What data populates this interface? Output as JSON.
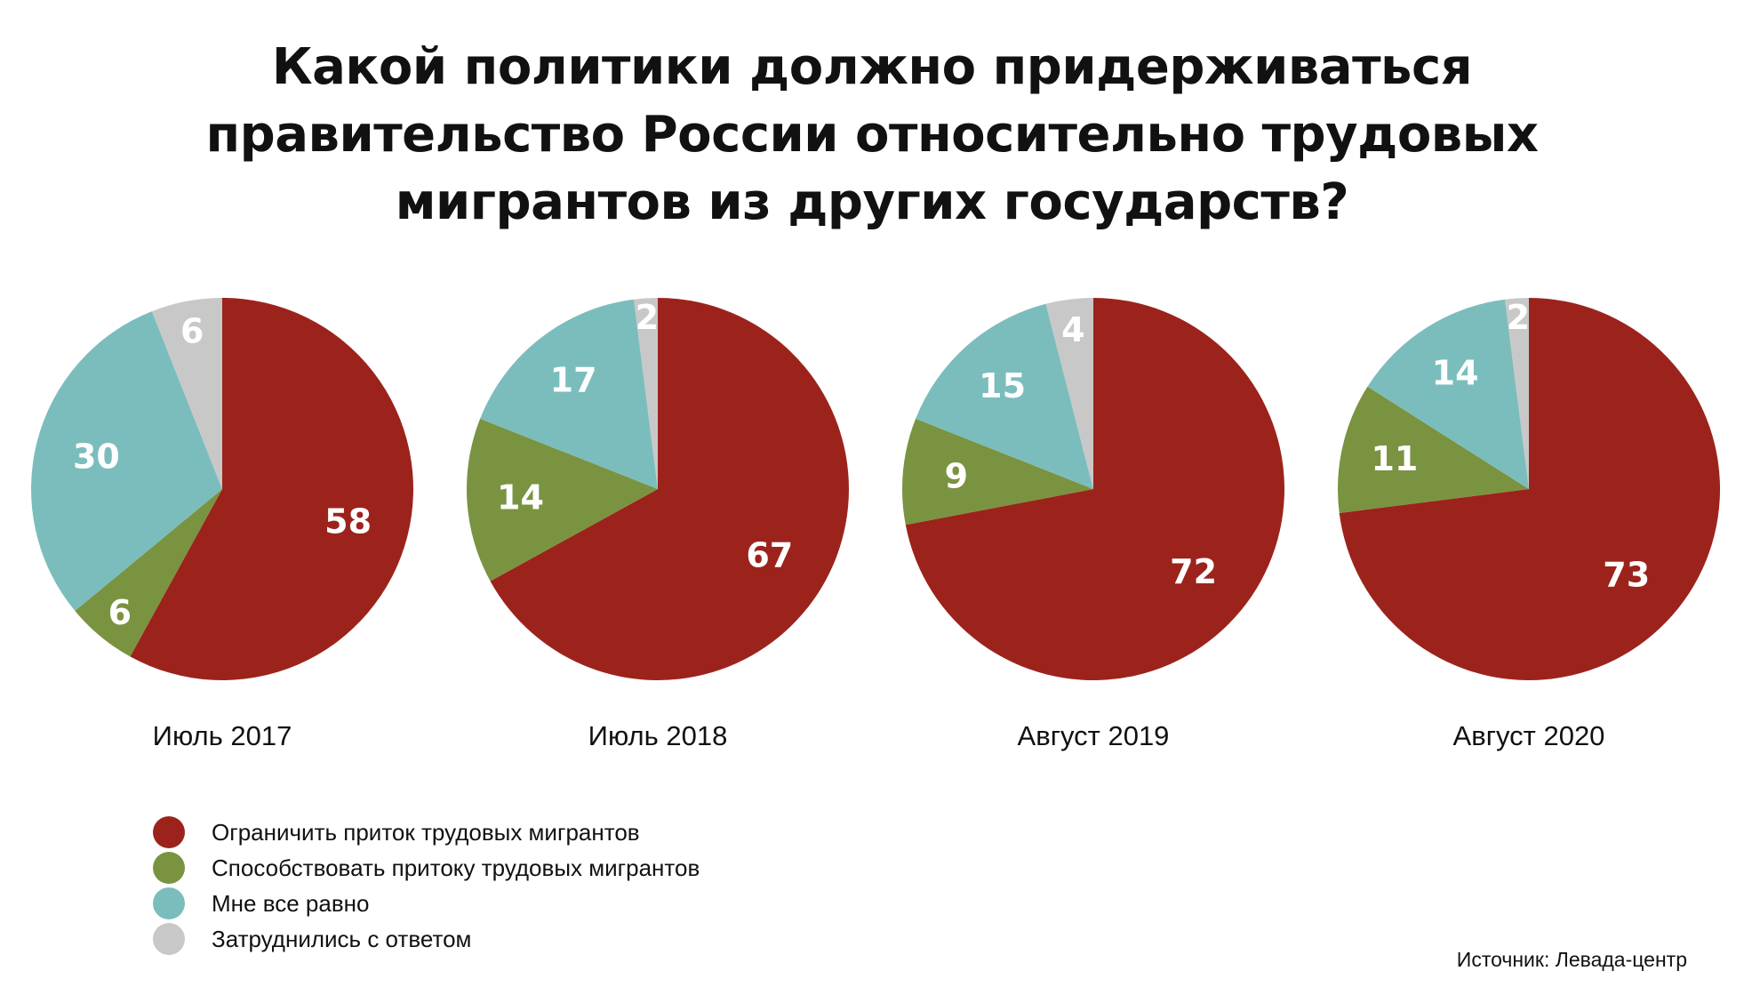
{
  "title_lines": [
    "Какой политики должно придерживаться",
    "правительство России относительно трудовых",
    "мигрантов из других государств?"
  ],
  "colors": {
    "restrict": "#9c231c",
    "promote": "#7a9340",
    "indifferent": "#7bbdbd",
    "undecided": "#c8c8c8"
  },
  "chart_data": {
    "type": "pie",
    "title": "Какой политики должно придерживаться правительство России относительно трудовых мигрантов из других государств?",
    "series_names": [
      "Ограничить приток трудовых мигрантов",
      "Способствовать притоку трудовых мигрантов",
      "Мне все равно",
      "Затруднились с ответом"
    ],
    "pies": [
      {
        "label": "Июль 2017",
        "values": [
          58,
          6,
          30,
          6
        ]
      },
      {
        "label": "Июль 2018",
        "values": [
          67,
          14,
          17,
          2
        ]
      },
      {
        "label": "Август 2019",
        "values": [
          72,
          9,
          15,
          4
        ]
      },
      {
        "label": "Август 2020",
        "values": [
          73,
          11,
          14,
          2
        ]
      }
    ],
    "legend_position": "bottom-left"
  },
  "legend": [
    {
      "label": "Ограничить приток трудовых мигрантов",
      "color": "#9c231c"
    },
    {
      "label": "Способствовать притоку трудовых мигрантов",
      "color": "#7a9340"
    },
    {
      "label": "Мне все равно",
      "color": "#7bbdbd"
    },
    {
      "label": "Затруднились с ответом",
      "color": "#c8c8c8"
    }
  ],
  "source": "Источник: Левада-центр"
}
